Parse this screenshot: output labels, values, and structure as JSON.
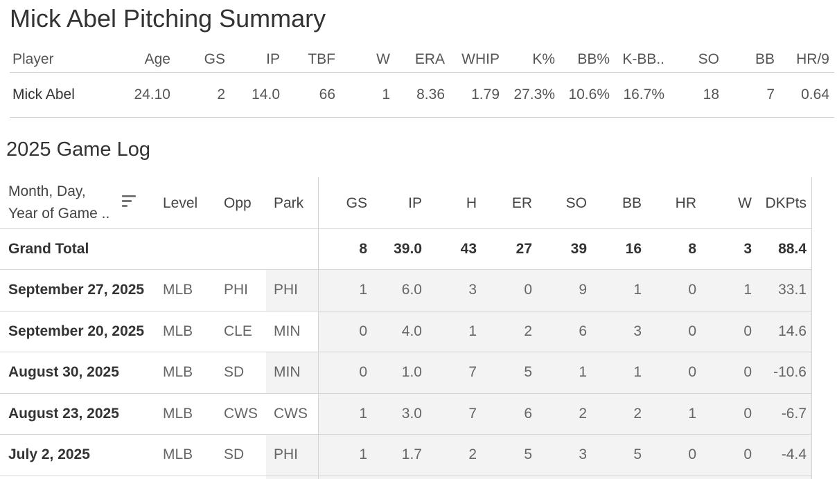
{
  "title": "Mick Abel Pitching Summary",
  "summary": {
    "headers": [
      "Player",
      "Age",
      "GS",
      "IP",
      "TBF",
      "W",
      "ERA",
      "WHIP",
      "K%",
      "BB%",
      "K-BB..",
      "SO",
      "BB",
      "HR/9"
    ],
    "row": [
      "Mick Abel",
      "24.10",
      "2",
      "14.0",
      "66",
      "1",
      "8.36",
      "1.79",
      "27.3%",
      "10.6%",
      "16.7%",
      "18",
      "7",
      "0.64"
    ]
  },
  "game_log": {
    "title": "2025 Game Log",
    "headers": [
      "Month, Day,",
      "Year of Game ..",
      "Level",
      "Opp",
      "Park",
      "GS",
      "IP",
      "H",
      "ER",
      "SO",
      "BB",
      "HR",
      "W",
      "DKPts"
    ],
    "total": [
      "Grand Total",
      "8",
      "39.0",
      "43",
      "27",
      "39",
      "16",
      "8",
      "3",
      "88.4"
    ],
    "rows": [
      [
        "September 27, 2025",
        "MLB",
        "PHI",
        "PHI",
        "1",
        "6.0",
        "3",
        "0",
        "9",
        "1",
        "0",
        "1",
        "33.1"
      ],
      [
        "September 20, 2025",
        "MLB",
        "CLE",
        "MIN",
        "0",
        "4.0",
        "1",
        "2",
        "6",
        "3",
        "0",
        "0",
        "14.6"
      ],
      [
        "August 30, 2025",
        "MLB",
        "SD",
        "MIN",
        "0",
        "1.0",
        "7",
        "5",
        "1",
        "1",
        "0",
        "0",
        "-10.6"
      ],
      [
        "August 23, 2025",
        "MLB",
        "CWS",
        "CWS",
        "1",
        "3.0",
        "7",
        "6",
        "2",
        "2",
        "1",
        "0",
        "-6.7"
      ],
      [
        "July 2, 2025",
        "MLB",
        "SD",
        "PHI",
        "1",
        "1.7",
        "2",
        "5",
        "3",
        "5",
        "0",
        "0",
        "-4.4"
      ]
    ]
  },
  "icons": {
    "sort": "sort-icon"
  }
}
